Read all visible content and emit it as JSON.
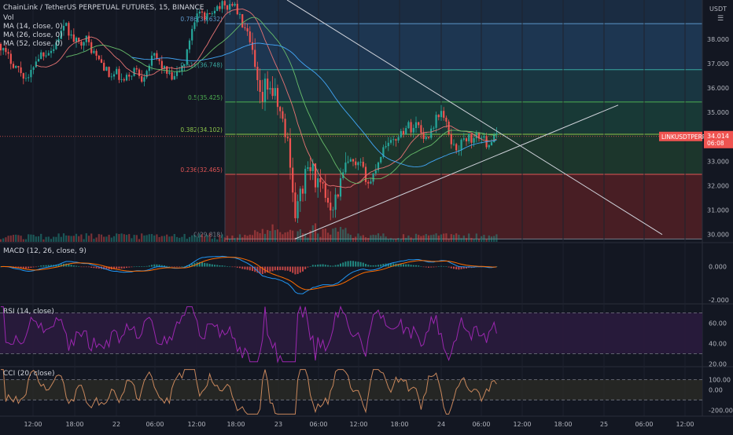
{
  "header": {
    "title": "ChainLink / TetherUS PERPETUAL FUTURES, 15, BINANCE",
    "volume_label": "Vol",
    "currency": "USDT"
  },
  "main_legend": [
    "MA (14, close, 0)",
    "MA (26, close, 0)",
    "MA (52, close, 0)"
  ],
  "price_label": {
    "symbol": "LINKUSDTPERP",
    "price": "34.014",
    "countdown": "06:08"
  },
  "fib_levels": [
    {
      "label": "0.786(38.632)",
      "value": 38.632,
      "color": "#5d97c9",
      "fill": "#1f3a57"
    },
    {
      "label": "0.618(36.748)",
      "value": 36.748,
      "color": "#3aa7a0",
      "fill": "#1b3a45"
    },
    {
      "label": "0.5(35.425)",
      "value": 35.425,
      "color": "#4caf50",
      "fill": "#193d38"
    },
    {
      "label": "0.382(34.102)",
      "value": 34.102,
      "color": "#8bc34a",
      "fill": "#1e3a2e"
    },
    {
      "label": "0.236(32.465)",
      "value": 32.465,
      "color": "#e05454",
      "fill": "#2a3326"
    },
    {
      "label": "0(29.818)",
      "value": 29.818,
      "color": "#787b86",
      "fill": "#4a1d24"
    }
  ],
  "macd_legend": "MACD (12, 26, close, 9)",
  "rsi_legend": "RSI (14, close)",
  "cci_legend": "CCI (20, close)",
  "colors": {
    "up": "#26a69a",
    "down": "#ef5350",
    "ma14": "#e57373",
    "ma26": "#66bb6a",
    "ma52": "#42a5f5",
    "macd": "#2196f3",
    "signal": "#ff6d00",
    "rsi": "#9c27b0",
    "rsi_band": "#2a1b3d",
    "cci": "#c8875c"
  },
  "chart_data": [
    {
      "type": "candlestick",
      "title": "ChainLink / TetherUS PERPETUAL FUTURES, 15, BINANCE",
      "ylim": [
        29.7,
        39.6
      ],
      "y_ticks": [
        "38.000",
        "37.000",
        "36.000",
        "35.000",
        "34.000",
        "33.000",
        "32.000",
        "31.000",
        "30.000"
      ],
      "x_ticks": [
        "12:00",
        "18:00",
        "22",
        "06:00",
        "12:00",
        "18:00",
        "23",
        "06:00",
        "12:00",
        "18:00",
        "24",
        "06:00",
        "12:00",
        "18:00",
        "25",
        "06:00",
        "12:00"
      ],
      "close_path": [
        [
          0,
          37.8
        ],
        [
          6,
          37.4
        ],
        [
          12,
          37.2
        ],
        [
          20,
          36.9
        ],
        [
          28,
          36.6
        ],
        [
          36,
          36.3
        ],
        [
          44,
          37.1
        ],
        [
          52,
          37.4
        ],
        [
          60,
          37.5
        ],
        [
          68,
          37.6
        ],
        [
          76,
          38.2
        ],
        [
          84,
          38.5
        ],
        [
          92,
          38.0
        ],
        [
          100,
          37.8
        ],
        [
          108,
          38.1
        ],
        [
          116,
          37.6
        ],
        [
          124,
          37.2
        ],
        [
          132,
          36.9
        ],
        [
          140,
          36.4
        ],
        [
          148,
          36.6
        ],
        [
          156,
          36.2
        ],
        [
          164,
          36.5
        ],
        [
          172,
          36.8
        ],
        [
          180,
          36.4
        ],
        [
          188,
          36.9
        ],
        [
          196,
          37.3
        ],
        [
          204,
          37.0
        ],
        [
          212,
          36.6
        ],
        [
          220,
          36.3
        ],
        [
          228,
          36.7
        ],
        [
          236,
          37.1
        ],
        [
          242,
          38.2
        ],
        [
          248,
          38.9
        ],
        [
          254,
          39.1
        ],
        [
          260,
          38.7
        ],
        [
          266,
          39.0
        ],
        [
          272,
          39.3
        ],
        [
          280,
          39.4
        ],
        [
          288,
          39.3
        ],
        [
          296,
          39.5
        ],
        [
          302,
          39.1
        ],
        [
          308,
          38.6
        ],
        [
          314,
          38.2
        ],
        [
          320,
          37.5
        ],
        [
          326,
          36.3
        ],
        [
          332,
          35.2
        ],
        [
          338,
          36.2
        ],
        [
          344,
          36.0
        ],
        [
          350,
          35.6
        ],
        [
          356,
          35.0
        ],
        [
          362,
          34.2
        ],
        [
          368,
          33.5
        ],
        [
          372,
          31.8
        ],
        [
          376,
          30.7
        ],
        [
          380,
          31.4
        ],
        [
          386,
          32.1
        ],
        [
          392,
          32.8
        ],
        [
          398,
          32.6
        ],
        [
          404,
          32.0
        ],
        [
          410,
          31.8
        ],
        [
          416,
          31.5
        ],
        [
          422,
          31.2
        ],
        [
          428,
          31.6
        ],
        [
          434,
          32.2
        ],
        [
          440,
          32.8
        ],
        [
          446,
          33.0
        ],
        [
          452,
          32.7
        ],
        [
          458,
          32.9
        ],
        [
          464,
          32.4
        ],
        [
          470,
          32.0
        ],
        [
          476,
          32.6
        ],
        [
          482,
          33.1
        ],
        [
          488,
          33.6
        ],
        [
          494,
          33.9
        ],
        [
          500,
          33.7
        ],
        [
          506,
          34.1
        ],
        [
          512,
          34.2
        ],
        [
          518,
          34.5
        ],
        [
          524,
          34.3
        ],
        [
          530,
          34.6
        ],
        [
          536,
          34.2
        ],
        [
          542,
          33.9
        ],
        [
          548,
          34.3
        ],
        [
          554,
          34.7
        ],
        [
          560,
          35.1
        ],
        [
          566,
          34.6
        ],
        [
          572,
          34.0
        ],
        [
          578,
          33.5
        ],
        [
          584,
          33.6
        ],
        [
          590,
          33.9
        ],
        [
          596,
          34.0
        ],
        [
          602,
          33.8
        ],
        [
          608,
          34.1
        ],
        [
          614,
          33.9
        ],
        [
          620,
          33.7
        ],
        [
          626,
          33.9
        ],
        [
          632,
          34.0
        ]
      ],
      "trend_lines": [
        {
          "from": [
            365,
            39.6
          ],
          "to": [
            842,
            30.0
          ]
        },
        {
          "from": [
            375,
            29.82
          ],
          "to": [
            786,
            35.3
          ]
        }
      ]
    },
    {
      "type": "line",
      "title": "MACD (12, 26, close, 9)",
      "ylim": [
        -2.2,
        1.4
      ],
      "y_ticks": [
        "0.000",
        "-2.000"
      ]
    },
    {
      "type": "line",
      "title": "RSI (14, close)",
      "ylim": [
        18,
        78
      ],
      "y_ticks": [
        "60.00",
        "40.00",
        "20.00"
      ],
      "bands": [
        70,
        30
      ]
    },
    {
      "type": "line",
      "title": "CCI (20, close)",
      "ylim": [
        -260,
        220
      ],
      "y_ticks": [
        "100.00",
        "0.00",
        "-200.00"
      ],
      "bands": [
        100,
        -100
      ]
    }
  ]
}
